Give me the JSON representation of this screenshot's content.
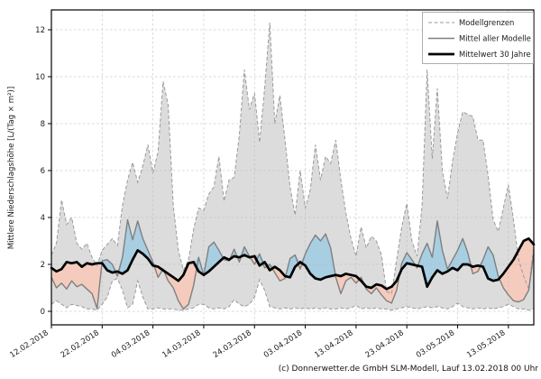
{
  "chart_data": {
    "type": "line",
    "title": "",
    "ylabel": "Mittlere Niederschlagshöhe [L/(Tag × m²)]",
    "footer": "(c) Donnerwetter.de GmbH SLM-Modell, Lauf 13.02.2018 00 Uhr",
    "x_tick_labels": [
      "12.02.2018",
      "22.02.2018",
      "04.03.2018",
      "14.03.2018",
      "24.03.2018",
      "03.04.2018",
      "13.04.2018",
      "23.04.2018",
      "03.05.2018",
      "13.05.2018"
    ],
    "x_tick_indices": [
      0,
      10,
      20,
      30,
      40,
      50,
      60,
      70,
      80,
      90
    ],
    "x_unit": "days",
    "y_ticks": [
      0,
      2,
      4,
      6,
      8,
      10,
      12
    ],
    "ylim": [
      -0.6,
      12.9
    ],
    "grid": true,
    "legend_position": "top-right",
    "series": [
      {
        "name": "Modellgrenzen",
        "role": "band",
        "style": "dashed-gray",
        "upper": [
          2.4,
          2.9,
          4.75,
          3.7,
          4.0,
          2.9,
          2.65,
          2.9,
          2.3,
          1.95,
          2.6,
          2.85,
          3.1,
          2.8,
          4.5,
          5.6,
          6.35,
          5.5,
          6.2,
          7.1,
          5.9,
          6.8,
          9.8,
          8.8,
          4.5,
          2.6,
          1.75,
          2.2,
          3.5,
          4.4,
          4.3,
          5.0,
          5.3,
          6.6,
          4.7,
          5.6,
          5.7,
          7.5,
          10.3,
          8.6,
          9.3,
          7.2,
          9.5,
          12.3,
          8.0,
          9.2,
          7.3,
          5.3,
          4.1,
          6.0,
          4.4,
          5.2,
          7.1,
          5.6,
          6.6,
          6.3,
          7.3,
          5.6,
          4.2,
          3.1,
          2.35,
          3.6,
          2.7,
          3.2,
          3.0,
          2.4,
          0.85,
          0.75,
          2.2,
          3.6,
          4.6,
          3.0,
          2.35,
          4.5,
          10.3,
          6.5,
          9.5,
          6.0,
          4.8,
          6.4,
          7.6,
          8.5,
          8.4,
          8.3,
          7.3,
          7.3,
          5.8,
          3.9,
          3.4,
          4.4,
          5.4,
          3.9,
          2.2,
          1.5,
          0.95,
          2.8
        ],
        "lower": [
          0.3,
          0.45,
          0.3,
          0.15,
          0.3,
          0.25,
          0.2,
          0.1,
          0.1,
          0.05,
          0.3,
          0.6,
          1.3,
          1.4,
          0.9,
          0.15,
          0.3,
          1.3,
          0.6,
          0.1,
          0.1,
          0.15,
          0.1,
          0.1,
          0.1,
          0.05,
          0.05,
          0.1,
          0.15,
          0.3,
          0.3,
          0.15,
          0.1,
          0.15,
          0.1,
          0.2,
          0.5,
          0.3,
          0.2,
          0.3,
          0.6,
          1.35,
          0.9,
          0.2,
          0.15,
          0.1,
          0.15,
          0.1,
          0.15,
          0.1,
          0.15,
          0.1,
          0.15,
          0.1,
          0.15,
          0.1,
          0.1,
          0.15,
          0.1,
          0.15,
          0.25,
          0.1,
          0.15,
          0.1,
          0.15,
          0.1,
          0.1,
          0.05,
          0.1,
          0.15,
          0.2,
          0.15,
          0.1,
          0.15,
          0.2,
          0.15,
          0.2,
          0.15,
          0.1,
          0.2,
          0.35,
          0.2,
          0.15,
          0.1,
          0.15,
          0.1,
          0.15,
          0.1,
          0.15,
          0.2,
          0.3,
          0.2,
          0.1,
          0.1,
          0.05,
          0.1
        ]
      },
      {
        "name": "Mittel aller Modelle",
        "role": "model-mean",
        "style": "solid-gray",
        "values": [
          1.45,
          1.0,
          1.2,
          0.95,
          1.3,
          1.05,
          1.15,
          0.95,
          0.75,
          0.12,
          2.15,
          2.2,
          2.0,
          1.5,
          2.3,
          3.9,
          3.05,
          3.85,
          3.1,
          2.6,
          2.1,
          1.45,
          1.8,
          1.3,
          1.0,
          0.45,
          0.1,
          0.3,
          1.1,
          2.3,
          1.55,
          2.75,
          2.95,
          2.6,
          2.2,
          2.15,
          2.65,
          2.1,
          2.75,
          2.35,
          2.0,
          2.45,
          1.85,
          2.0,
          1.65,
          1.3,
          1.4,
          2.25,
          2.4,
          1.8,
          2.45,
          2.9,
          3.25,
          3.0,
          3.3,
          2.7,
          1.45,
          0.75,
          1.3,
          1.45,
          1.2,
          1.45,
          0.95,
          0.75,
          1.0,
          0.7,
          0.45,
          0.35,
          0.9,
          2.05,
          2.5,
          2.2,
          1.85,
          2.45,
          2.9,
          2.3,
          3.85,
          2.6,
          1.8,
          2.2,
          2.6,
          3.1,
          2.5,
          1.6,
          1.7,
          2.2,
          2.75,
          2.4,
          1.5,
          1.0,
          0.7,
          0.45,
          0.4,
          0.5,
          0.9,
          2.5
        ]
      },
      {
        "name": "Mittelwert 30 Jahre",
        "role": "mean-30y",
        "style": "thick-black",
        "values": [
          1.85,
          1.7,
          1.8,
          2.1,
          2.05,
          2.1,
          1.9,
          2.05,
          2.0,
          2.05,
          2.05,
          1.75,
          1.65,
          1.7,
          1.6,
          1.75,
          2.2,
          2.6,
          2.45,
          2.25,
          1.95,
          1.9,
          1.75,
          1.6,
          1.45,
          1.3,
          1.55,
          2.05,
          2.1,
          1.7,
          1.55,
          1.7,
          1.9,
          2.1,
          2.3,
          2.2,
          2.35,
          2.3,
          2.4,
          2.3,
          2.35,
          1.95,
          2.1,
          1.75,
          1.9,
          1.75,
          1.5,
          1.45,
          1.9,
          2.1,
          1.95,
          1.6,
          1.4,
          1.35,
          1.45,
          1.5,
          1.55,
          1.5,
          1.6,
          1.55,
          1.5,
          1.3,
          1.05,
          1.0,
          1.15,
          1.1,
          0.95,
          1.05,
          1.3,
          1.8,
          2.05,
          2.0,
          1.95,
          1.9,
          1.05,
          1.45,
          1.75,
          1.6,
          1.7,
          1.85,
          1.75,
          2.0,
          2.0,
          1.9,
          1.95,
          1.9,
          1.4,
          1.3,
          1.35,
          1.6,
          1.9,
          2.2,
          2.6,
          3.0,
          3.1,
          2.85
        ]
      }
    ],
    "colors": {
      "band": "#dcdcdc",
      "band_edge": "#9a9a9a",
      "model_mean": "#7f7f7f",
      "mean_30y": "#000000",
      "above_fill": "#a8cee2",
      "below_fill": "#f5cbbd",
      "grid": "#bbbbbb",
      "axis": "#000000",
      "text": "#1a1a1a"
    }
  }
}
